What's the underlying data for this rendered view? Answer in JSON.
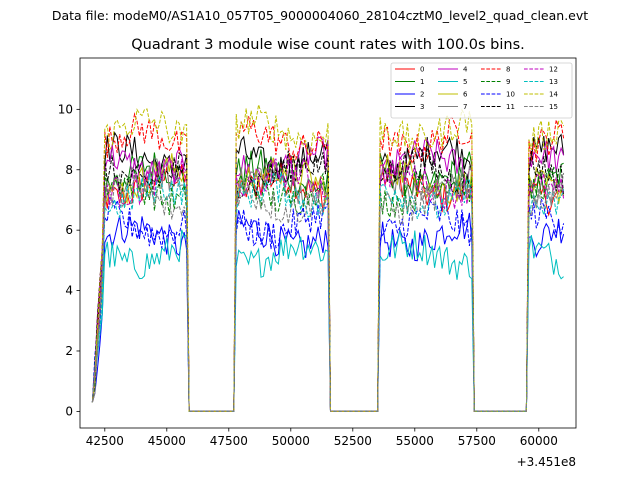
{
  "suptitle": "Data file: modeM0/AS1A10_057T05_9000004060_28104cztM0_level2_quad_clean.evt",
  "chart_data": {
    "type": "line",
    "title": "Quadrant 3 module wise count rates with 100.0s bins.",
    "xlabel": "",
    "ylabel": "",
    "x_offset_label": "+3.451e8",
    "xlim": [
      41500,
      61500
    ],
    "ylim": [
      -0.55,
      11.7
    ],
    "x_ticks": [
      42500,
      45000,
      47500,
      50000,
      52500,
      55000,
      57500,
      60000
    ],
    "x_tick_labels": [
      "42500",
      "45000",
      "47500",
      "50000",
      "52500",
      "55000",
      "57500",
      "60000"
    ],
    "y_ticks": [
      0,
      2,
      4,
      6,
      8,
      10
    ],
    "y_tick_labels": [
      "0",
      "2",
      "4",
      "6",
      "8",
      "10"
    ],
    "bin_seconds": 100,
    "time_segments": [
      {
        "start": 42000,
        "end": 45900,
        "on": true
      },
      {
        "start": 45900,
        "end": 47800,
        "on": false
      },
      {
        "start": 47800,
        "end": 51600,
        "on": true
      },
      {
        "start": 51600,
        "end": 53600,
        "on": false
      },
      {
        "start": 53600,
        "end": 57400,
        "on": true
      },
      {
        "start": 57400,
        "end": 59600,
        "on": false
      },
      {
        "start": 59600,
        "end": 61100,
        "on": true
      }
    ],
    "legend_position": "top-right",
    "series": [
      {
        "name": "0",
        "color": "#ff0000",
        "dash": "solid",
        "level": 7.4
      },
      {
        "name": "1",
        "color": "#008000",
        "dash": "solid",
        "level": 7.8
      },
      {
        "name": "2",
        "color": "#0000ff",
        "dash": "solid",
        "level": 5.8
      },
      {
        "name": "3",
        "color": "#000000",
        "dash": "solid",
        "level": 8.4
      },
      {
        "name": "4",
        "color": "#bf00bf",
        "dash": "solid",
        "level": 8.2
      },
      {
        "name": "5",
        "color": "#00bfbf",
        "dash": "solid",
        "level": 5.2
      },
      {
        "name": "6",
        "color": "#bfbf00",
        "dash": "solid",
        "level": 7.7
      },
      {
        "name": "7",
        "color": "#808080",
        "dash": "solid",
        "level": 7.5
      },
      {
        "name": "8",
        "color": "#ff0000",
        "dash": "dashed",
        "level": 9.0
      },
      {
        "name": "9",
        "color": "#008000",
        "dash": "dashed",
        "level": 7.3
      },
      {
        "name": "10",
        "color": "#0000ff",
        "dash": "dashed",
        "level": 6.2
      },
      {
        "name": "11",
        "color": "#000000",
        "dash": "dashed",
        "level": 7.9
      },
      {
        "name": "12",
        "color": "#bf00bf",
        "dash": "dashed",
        "level": 7.6
      },
      {
        "name": "13",
        "color": "#00bfbf",
        "dash": "dashed",
        "level": 7.1
      },
      {
        "name": "14",
        "color": "#bfbf00",
        "dash": "dashed",
        "level": 9.3
      },
      {
        "name": "15",
        "color": "#808080",
        "dash": "dashed",
        "level": 7.0
      }
    ]
  }
}
